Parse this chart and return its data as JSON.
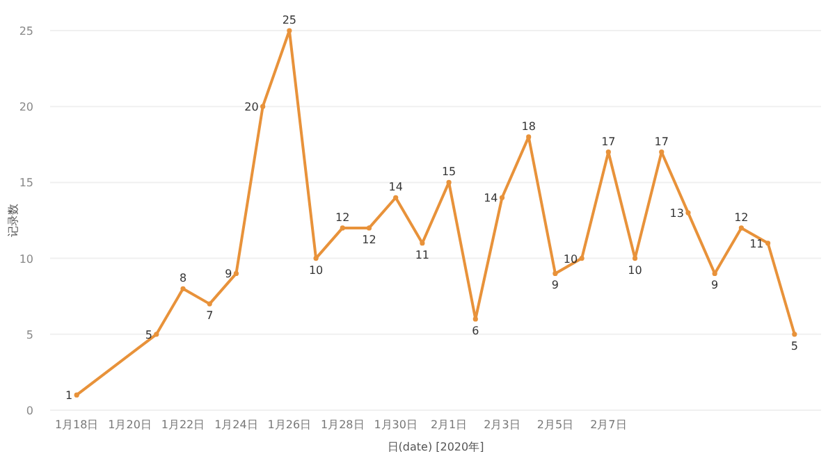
{
  "chart_data": {
    "type": "line",
    "xlabel": "日(date) [2020年]",
    "ylabel": "记录数",
    "x": [
      "2020-01-18",
      "2020-01-21",
      "2020-01-22",
      "2020-01-23",
      "2020-01-24",
      "2020-01-25",
      "2020-01-26",
      "2020-01-27",
      "2020-01-28",
      "2020-01-29",
      "2020-01-30",
      "2020-01-31",
      "2020-02-01",
      "2020-02-02",
      "2020-02-03",
      "2020-02-04",
      "2020-02-05",
      "2020-02-06",
      "2020-02-07",
      "2020-02-08",
      "2020-02-09",
      "2020-02-10",
      "2020-02-11",
      "2020-02-12",
      "2020-02-13",
      "2020-02-14"
    ],
    "values": [
      1,
      5,
      8,
      7,
      9,
      20,
      25,
      10,
      12,
      12,
      14,
      11,
      15,
      6,
      14,
      18,
      9,
      10,
      17,
      10,
      17,
      13,
      9,
      12,
      11,
      5
    ],
    "color": "#e8923a",
    "marker": "circle",
    "line_style": "solid",
    "grid": "y",
    "data_labels": true,
    "xlim": [
      "2020-01-17",
      "2020-02-15"
    ],
    "ylim": [
      0,
      25
    ],
    "xticks": [
      {
        "value": "2020-01-18",
        "label": "1月18日"
      },
      {
        "value": "2020-01-20",
        "label": "1月20日"
      },
      {
        "value": "2020-01-22",
        "label": "1月22日"
      },
      {
        "value": "2020-01-24",
        "label": "1月24日"
      },
      {
        "value": "2020-01-26",
        "label": "1月26日"
      },
      {
        "value": "2020-01-28",
        "label": "1月28日"
      },
      {
        "value": "2020-01-30",
        "label": "1月30日"
      },
      {
        "value": "2020-02-01",
        "label": "2月1日"
      },
      {
        "value": "2020-02-03",
        "label": "2月3日"
      },
      {
        "value": "2020-02-05",
        "label": "2月5日"
      },
      {
        "value": "2020-02-07",
        "label": "2月7日"
      }
    ],
    "yticks": [
      0,
      5,
      10,
      15,
      20,
      25
    ]
  }
}
